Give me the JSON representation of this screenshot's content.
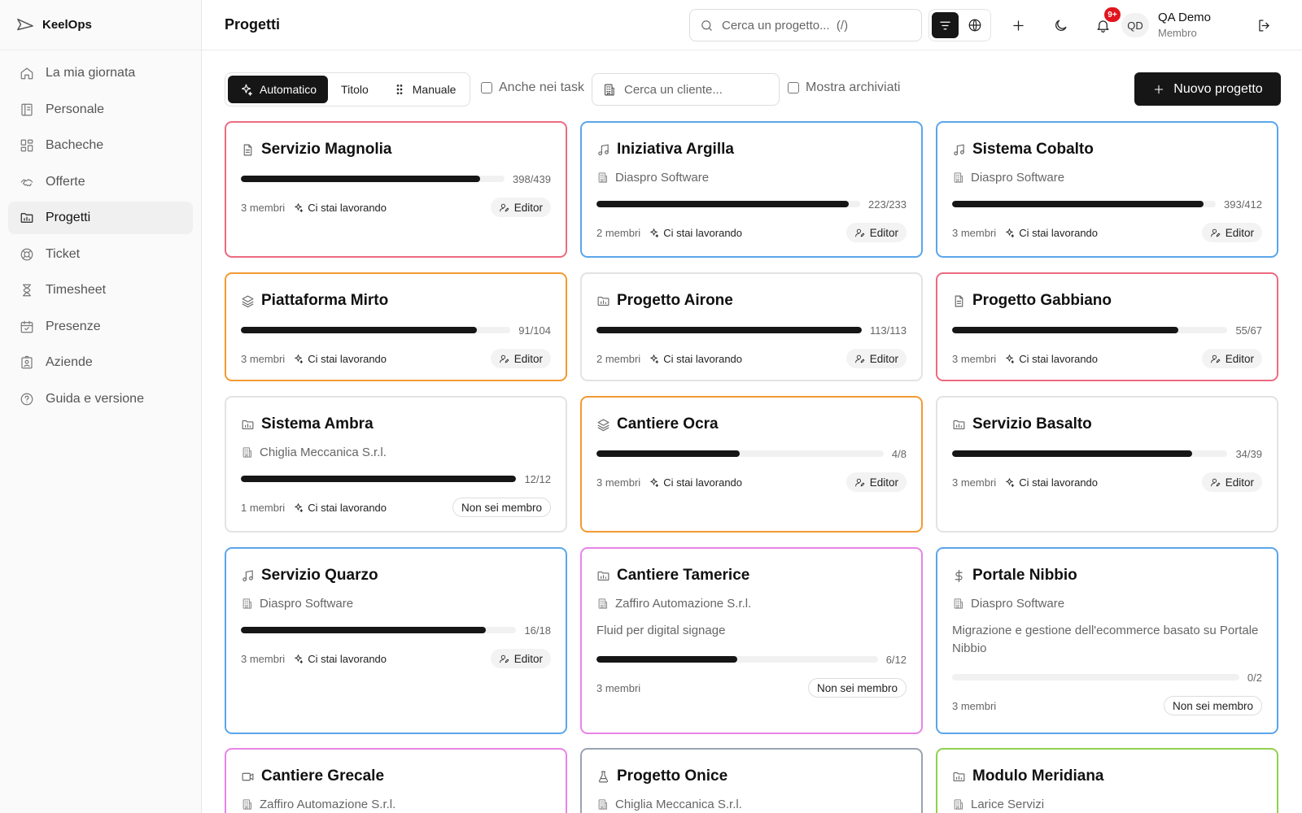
{
  "app": {
    "name": "KeelOps"
  },
  "sidebar": {
    "items": [
      {
        "label": "La mia giornata",
        "icon": "home-icon"
      },
      {
        "label": "Personale",
        "icon": "book-icon"
      },
      {
        "label": "Bacheche",
        "icon": "grid-icon"
      },
      {
        "label": "Offerte",
        "icon": "handshake-icon"
      },
      {
        "label": "Progetti",
        "icon": "folder-chart-icon",
        "active": true
      },
      {
        "label": "Ticket",
        "icon": "lifebuoy-icon"
      },
      {
        "label": "Timesheet",
        "icon": "hourglass-icon"
      },
      {
        "label": "Presenze",
        "icon": "calendar-check-icon"
      },
      {
        "label": "Aziende",
        "icon": "badge-icon"
      },
      {
        "label": "Guida e versione",
        "icon": "help-icon"
      }
    ]
  },
  "header": {
    "title": "Progetti",
    "search_placeholder": "Cerca un progetto...  (/)",
    "notification_badge": "9+",
    "user": {
      "initials": "QD",
      "name": "QA Demo",
      "role": "Membro"
    }
  },
  "toolbar": {
    "sort_options": [
      {
        "label": "Automatico",
        "active": true
      },
      {
        "label": "Titolo"
      },
      {
        "label": "Manuale"
      }
    ],
    "include_tasks_label": "Anche nei task",
    "client_placeholder": "Cerca un cliente...",
    "show_archived_label": "Mostra archiviati",
    "new_project_label": "Nuovo progetto"
  },
  "colors": {
    "red": "#ec6b80",
    "blue": "#5aa6ea",
    "orange": "#f39a33",
    "pink": "#e884e8",
    "gray": "#9aa3b0",
    "green": "#8fd14f",
    "neutral": "#e3e3e3"
  },
  "projects": [
    {
      "title": "Servizio Magnolia",
      "icon": "document-icon",
      "border": "#ec6b80",
      "client": "",
      "description": "",
      "done": 398,
      "total": 439,
      "count": "398/439",
      "members": "3 membri",
      "status": "Ci stai lavorando",
      "role": "Editor",
      "role_type": "editor"
    },
    {
      "title": "Iniziativa Argilla",
      "icon": "music-icon",
      "border": "#5aa6ea",
      "client": "Diaspro Software",
      "description": "",
      "done": 223,
      "total": 233,
      "count": "223/233",
      "members": "2 membri",
      "status": "Ci stai lavorando",
      "role": "Editor",
      "role_type": "editor"
    },
    {
      "title": "Sistema Cobalto",
      "icon": "music-icon",
      "border": "#5aa6ea",
      "client": "Diaspro Software",
      "description": "",
      "done": 393,
      "total": 412,
      "count": "393/412",
      "members": "3 membri",
      "status": "Ci stai lavorando",
      "role": "Editor",
      "role_type": "editor"
    },
    {
      "title": "Piattaforma Mirto",
      "icon": "layers-icon",
      "border": "#f39a33",
      "client": "",
      "description": "",
      "done": 91,
      "total": 104,
      "count": "91/104",
      "members": "3 membri",
      "status": "Ci stai lavorando",
      "role": "Editor",
      "role_type": "editor"
    },
    {
      "title": "Progetto Airone",
      "icon": "folder-chart-icon",
      "border": "#e3e3e3",
      "client": "",
      "description": "",
      "done": 113,
      "total": 113,
      "count": "113/113",
      "members": "2 membri",
      "status": "Ci stai lavorando",
      "role": "Editor",
      "role_type": "editor"
    },
    {
      "title": "Progetto Gabbiano",
      "icon": "document-icon",
      "border": "#ec6b80",
      "client": "",
      "description": "",
      "done": 55,
      "total": 67,
      "count": "55/67",
      "members": "3 membri",
      "status": "Ci stai lavorando",
      "role": "Editor",
      "role_type": "editor"
    },
    {
      "title": "Sistema Ambra",
      "icon": "folder-chart-icon",
      "border": "#e3e3e3",
      "client": "Chiglia Meccanica S.r.l.",
      "description": "",
      "done": 12,
      "total": 12,
      "count": "12/12",
      "members": "1 membri",
      "status": "Ci stai lavorando",
      "role": "Non sei membro",
      "role_type": "none"
    },
    {
      "title": "Cantiere Ocra",
      "icon": "layers-icon",
      "border": "#f39a33",
      "client": "",
      "description": "",
      "done": 4,
      "total": 8,
      "count": "4/8",
      "members": "3 membri",
      "status": "Ci stai lavorando",
      "role": "Editor",
      "role_type": "editor"
    },
    {
      "title": "Servizio Basalto",
      "icon": "folder-chart-icon",
      "border": "#e3e3e3",
      "client": "",
      "description": "",
      "done": 34,
      "total": 39,
      "count": "34/39",
      "members": "3 membri",
      "status": "Ci stai lavorando",
      "role": "Editor",
      "role_type": "editor"
    },
    {
      "title": "Servizio Quarzo",
      "icon": "music-icon",
      "border": "#5aa6ea",
      "client": "Diaspro Software",
      "description": "",
      "done": 16,
      "total": 18,
      "count": "16/18",
      "members": "3 membri",
      "status": "Ci stai lavorando",
      "role": "Editor",
      "role_type": "editor"
    },
    {
      "title": "Cantiere Tamerice",
      "icon": "folder-chart-icon",
      "border": "#e884e8",
      "client": "Zaffiro Automazione S.r.l.",
      "description": "Fluid per digital signage",
      "done": 6,
      "total": 12,
      "count": "6/12",
      "members": "3 membri",
      "status": "",
      "role": "Non sei membro",
      "role_type": "none"
    },
    {
      "title": "Portale Nibbio",
      "icon": "dollar-icon",
      "border": "#5aa6ea",
      "client": "Diaspro Software",
      "description": "Migrazione e gestione dell'ecommerce basato su Portale Nibbio",
      "done": 0,
      "total": 2,
      "count": "0/2",
      "members": "3 membri",
      "status": "",
      "role": "Non sei membro",
      "role_type": "none"
    },
    {
      "title": "Cantiere Grecale",
      "icon": "video-icon",
      "border": "#e884e8",
      "client": "Zaffiro Automazione S.r.l.",
      "description": "",
      "done": 0,
      "total": 0,
      "count": "",
      "members": "",
      "status": "",
      "role": "",
      "role_type": ""
    },
    {
      "title": "Progetto Onice",
      "icon": "flask-icon",
      "border": "#9aa3b0",
      "client": "Chiglia Meccanica S.r.l.",
      "description": "",
      "done": 0,
      "total": 0,
      "count": "",
      "members": "",
      "status": "",
      "role": "",
      "role_type": ""
    },
    {
      "title": "Modulo Meridiana",
      "icon": "folder-chart-icon",
      "border": "#8fd14f",
      "client": "Larice Servizi",
      "description": "",
      "done": 0,
      "total": 0,
      "count": "",
      "members": "",
      "status": "",
      "role": "",
      "role_type": ""
    }
  ]
}
